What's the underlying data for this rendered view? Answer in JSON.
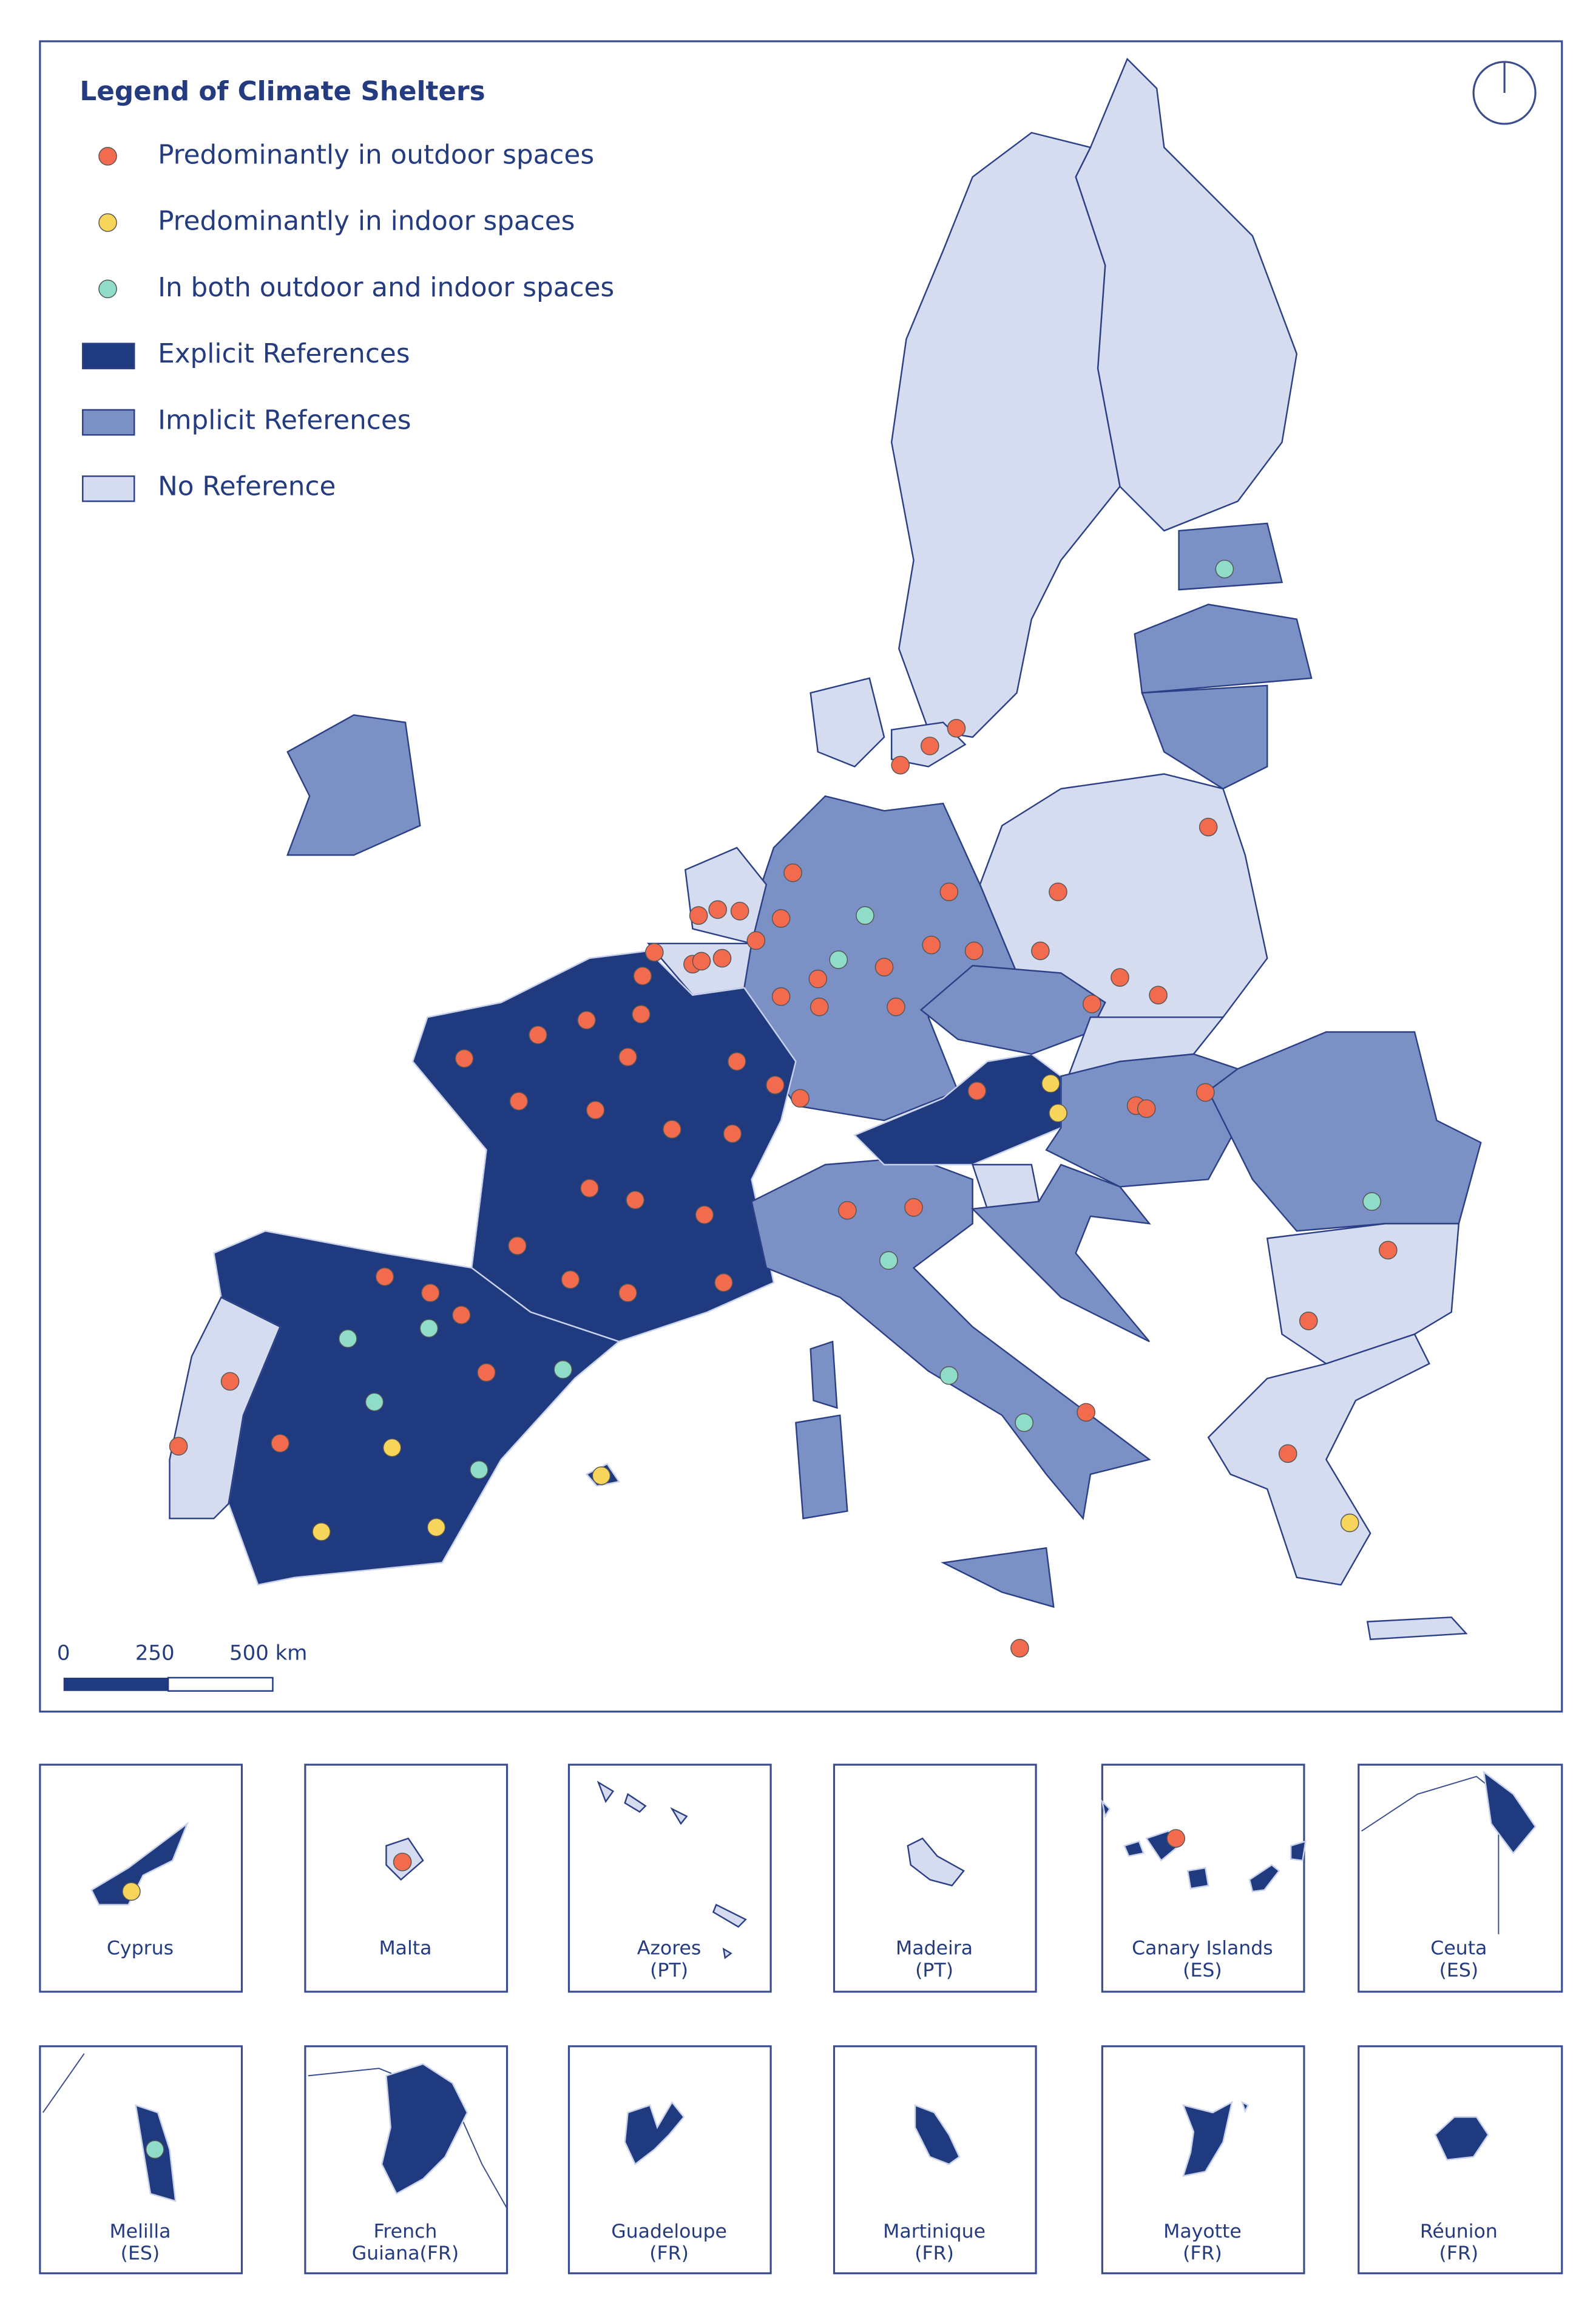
{
  "legend": {
    "title": "Legend of Climate Shelters",
    "items": [
      "Predominantly in outdoor spaces",
      "Predominantly in indoor spaces",
      "In both outdoor and indoor spaces",
      "Explicit References",
      "Implicit References",
      "No Reference"
    ]
  },
  "scale_bar": {
    "labels": [
      "0",
      "250",
      "500 km"
    ]
  },
  "insets": [
    {
      "lines": [
        "Cyprus"
      ]
    },
    {
      "lines": [
        "Malta"
      ]
    },
    {
      "lines": [
        "Azores",
        "(PT)"
      ]
    },
    {
      "lines": [
        "Madeira",
        "(PT)"
      ]
    },
    {
      "lines": [
        "Canary Islands",
        "(ES)"
      ]
    },
    {
      "lines": [
        "Ceuta",
        "(ES)"
      ]
    },
    {
      "lines": [
        "Melilla",
        "(ES)"
      ]
    },
    {
      "lines": [
        "French",
        "Guiana(FR)"
      ]
    },
    {
      "lines": [
        "Guadeloupe",
        "(FR)"
      ]
    },
    {
      "lines": [
        "Martinique",
        "(FR)"
      ]
    },
    {
      "lines": [
        "Mayotte",
        "(FR)"
      ]
    },
    {
      "lines": [
        "Réunion",
        "(FR)"
      ]
    }
  ]
}
